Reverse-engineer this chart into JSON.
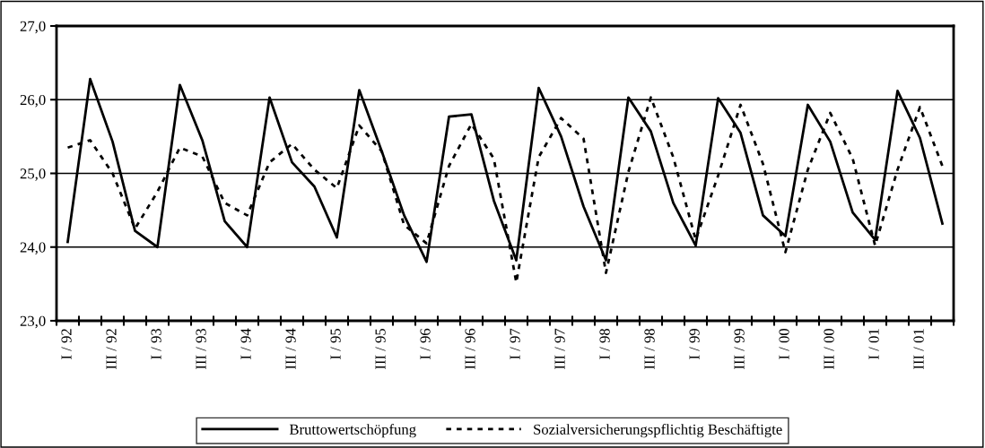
{
  "chart_data": {
    "type": "line",
    "categories": [
      "I / 92",
      null,
      "III / 92",
      null,
      "I / 93",
      null,
      "III / 93",
      null,
      "I / 94",
      null,
      "III / 94",
      null,
      "I / 95",
      null,
      "III / 95",
      null,
      "I / 96",
      null,
      "III / 96",
      null,
      "I / 97",
      null,
      "III / 97",
      null,
      "I / 98",
      null,
      "III / 98",
      null,
      "I / 99",
      null,
      "III / 99",
      null,
      "I / 00",
      null,
      "III / 00",
      null,
      "I / 01",
      null,
      "III / 01",
      null
    ],
    "series": [
      {
        "name": "Bruttowertschöpfung",
        "color": "#000000",
        "line_style": "solid",
        "values": [
          24.07,
          26.28,
          25.43,
          24.22,
          24.0,
          26.2,
          25.45,
          24.35,
          24.0,
          26.03,
          25.15,
          24.82,
          24.13,
          26.13,
          25.3,
          24.43,
          23.8,
          25.77,
          25.8,
          24.63,
          23.82,
          26.16,
          25.5,
          24.55,
          23.82,
          26.03,
          25.57,
          24.6,
          24.02,
          26.02,
          25.55,
          24.43,
          24.15,
          25.93,
          25.43,
          24.47,
          24.1,
          26.12,
          25.48,
          24.32
        ]
      },
      {
        "name": "Sozialversicherungspflichtig Beschäftigte",
        "color": "#000000",
        "line_style": "dotted",
        "values": [
          25.35,
          25.45,
          25.0,
          24.25,
          24.75,
          25.35,
          25.23,
          24.6,
          24.43,
          25.15,
          25.4,
          25.05,
          24.8,
          25.65,
          25.3,
          24.3,
          24.05,
          25.1,
          25.67,
          25.2,
          23.52,
          25.22,
          25.75,
          25.47,
          23.65,
          25.02,
          26.03,
          25.22,
          24.1,
          24.97,
          25.93,
          25.13,
          23.93,
          25.05,
          25.82,
          25.2,
          24.02,
          25.05,
          25.9,
          25.1
        ]
      }
    ],
    "ylim": [
      23,
      27
    ],
    "yticks": [
      {
        "value": 23,
        "label": "23,0"
      },
      {
        "value": 24,
        "label": "24,0"
      },
      {
        "value": 25,
        "label": "25,0"
      },
      {
        "value": 26,
        "label": "26,0"
      },
      {
        "value": 27,
        "label": "27,0"
      }
    ],
    "grid": "y",
    "legend": "bottom",
    "marker": "none"
  }
}
